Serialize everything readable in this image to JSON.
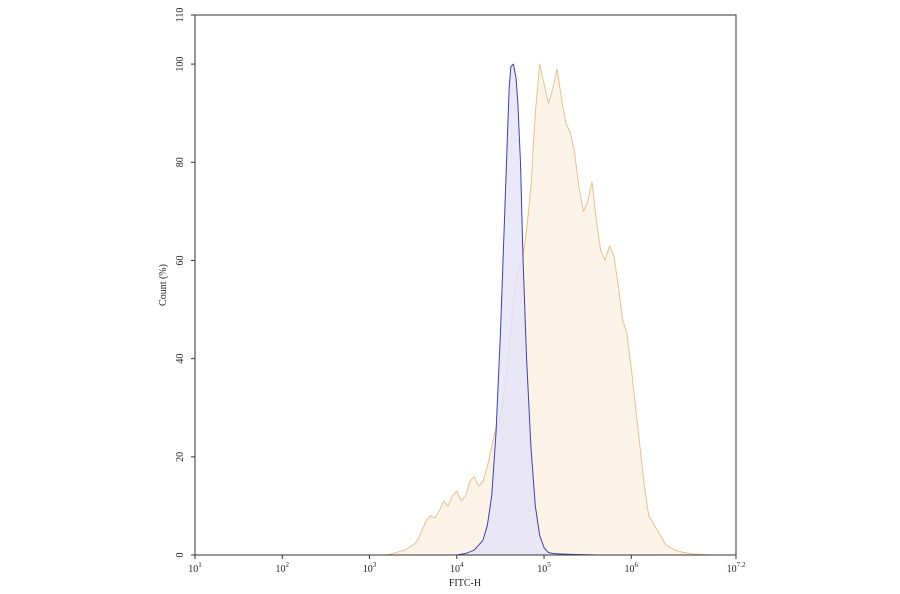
{
  "chart_data": {
    "type": "area",
    "xlabel": "FITC-H",
    "ylabel": "Count (%)",
    "x_scale": "log",
    "xlim": [
      1,
      7.2
    ],
    "ylim": [
      0,
      110
    ],
    "grid": false,
    "x_ticks": [
      {
        "value": 1,
        "base": "10",
        "exp": "1"
      },
      {
        "value": 2,
        "base": "10",
        "exp": "2"
      },
      {
        "value": 3,
        "base": "10",
        "exp": "3"
      },
      {
        "value": 4,
        "base": "10",
        "exp": "4"
      },
      {
        "value": 5,
        "base": "10",
        "exp": "5"
      },
      {
        "value": 6,
        "base": "10",
        "exp": "6"
      },
      {
        "value": 7.2,
        "base": "10",
        "exp": "7.2"
      }
    ],
    "y_ticks": [
      "0",
      "20",
      "40",
      "60",
      "80",
      "100",
      "110"
    ],
    "series": [
      {
        "color": "#3f3fb0",
        "fill": "#e4e4f8",
        "x": [
          4.0,
          4.1,
          4.2,
          4.3,
          4.35,
          4.4,
          4.45,
          4.5,
          4.55,
          4.58,
          4.6,
          4.62,
          4.65,
          4.68,
          4.7,
          4.73,
          4.76,
          4.8,
          4.85,
          4.9,
          4.95,
          5.0,
          5.05,
          5.1,
          5.2,
          5.35,
          5.5,
          5.6
        ],
        "y": [
          0,
          0.3,
          1,
          3,
          6,
          12,
          25,
          45,
          70,
          85,
          95,
          99.5,
          100,
          97,
          92,
          80,
          60,
          40,
          22,
          10,
          4,
          1.5,
          0.5,
          0.3,
          0.2,
          0.1,
          0.05,
          0
        ]
      },
      {
        "color": "#e8c08e",
        "fill": "#fdf1e3",
        "x": [
          3.2,
          3.3,
          3.4,
          3.5,
          3.55,
          3.6,
          3.65,
          3.7,
          3.75,
          3.8,
          3.85,
          3.9,
          3.95,
          4.0,
          4.05,
          4.1,
          4.15,
          4.2,
          4.25,
          4.3,
          4.35,
          4.4,
          4.45,
          4.5,
          4.55,
          4.6,
          4.65,
          4.7,
          4.75,
          4.8,
          4.85,
          4.9,
          4.95,
          5.0,
          5.05,
          5.1,
          5.15,
          5.2,
          5.25,
          5.3,
          5.35,
          5.4,
          5.45,
          5.5,
          5.55,
          5.6,
          5.65,
          5.7,
          5.75,
          5.8,
          5.85,
          5.9,
          5.95,
          6.0,
          6.05,
          6.1,
          6.15,
          6.2,
          6.3,
          6.4,
          6.5,
          6.6,
          6.7,
          6.8,
          6.9
        ],
        "y": [
          0,
          0.5,
          1,
          2,
          3,
          5,
          7,
          8,
          7.5,
          9,
          11,
          10,
          12,
          13,
          11,
          12,
          15,
          16,
          14,
          15,
          18,
          22,
          26,
          28,
          34,
          42,
          52,
          58,
          60,
          66,
          75,
          90,
          100,
          96,
          92,
          95,
          99,
          93,
          88,
          86,
          82,
          75,
          70,
          72,
          76,
          68,
          62,
          60,
          63,
          61,
          55,
          48,
          45,
          38,
          30,
          22,
          14,
          8,
          5,
          2,
          1,
          0.5,
          0.2,
          0.1,
          0
        ]
      }
    ]
  }
}
